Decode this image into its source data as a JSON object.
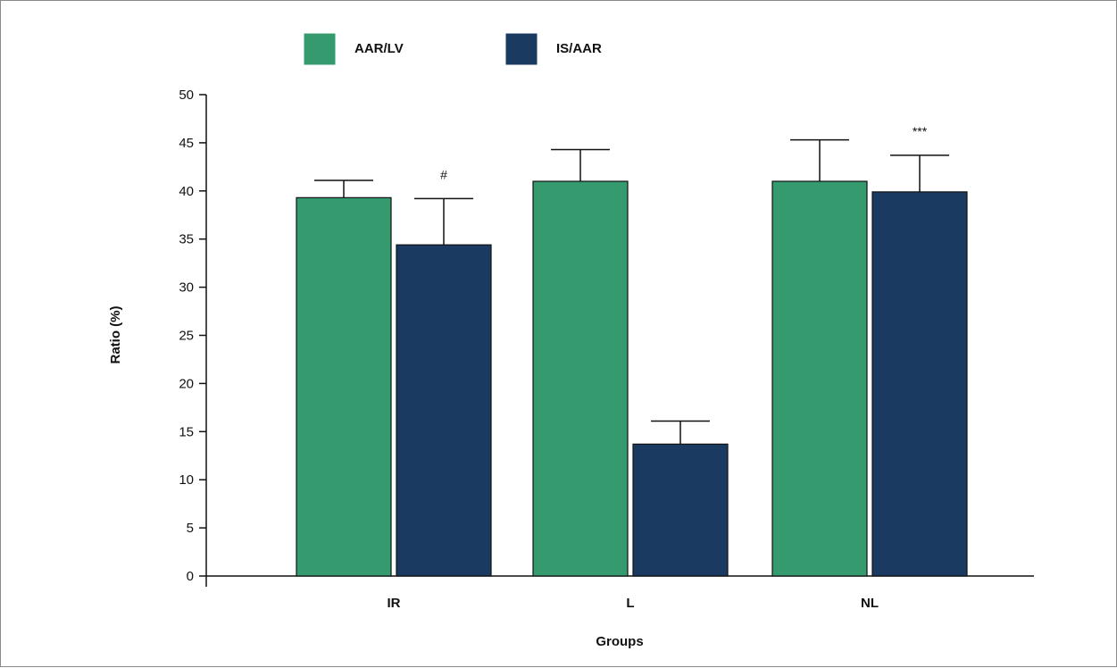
{
  "colors": {
    "aar_lv": "#359a6e",
    "is_aar": "#1b3a62",
    "axis": "#111111",
    "frame": "#8a8a8a"
  },
  "chart_data": {
    "type": "bar",
    "title": "",
    "xlabel": "Groups",
    "ylabel": "Ratio (%)",
    "ylim": [
      0,
      50
    ],
    "yticks": [
      0,
      5,
      10,
      15,
      20,
      25,
      30,
      35,
      40,
      45,
      50
    ],
    "categories": [
      "IR",
      "L",
      "NL"
    ],
    "legend_position": "top-left",
    "grid": false,
    "series": [
      {
        "name": "AAR/LV",
        "values": [
          39.3,
          41.0,
          41.0
        ],
        "errors": [
          1.8,
          3.3,
          4.3
        ],
        "annotations": [
          "",
          "",
          ""
        ]
      },
      {
        "name": "IS/AAR",
        "values": [
          34.4,
          13.7,
          39.9
        ],
        "errors": [
          4.8,
          2.4,
          3.8
        ],
        "annotations": [
          "#",
          "",
          "***"
        ]
      }
    ]
  }
}
